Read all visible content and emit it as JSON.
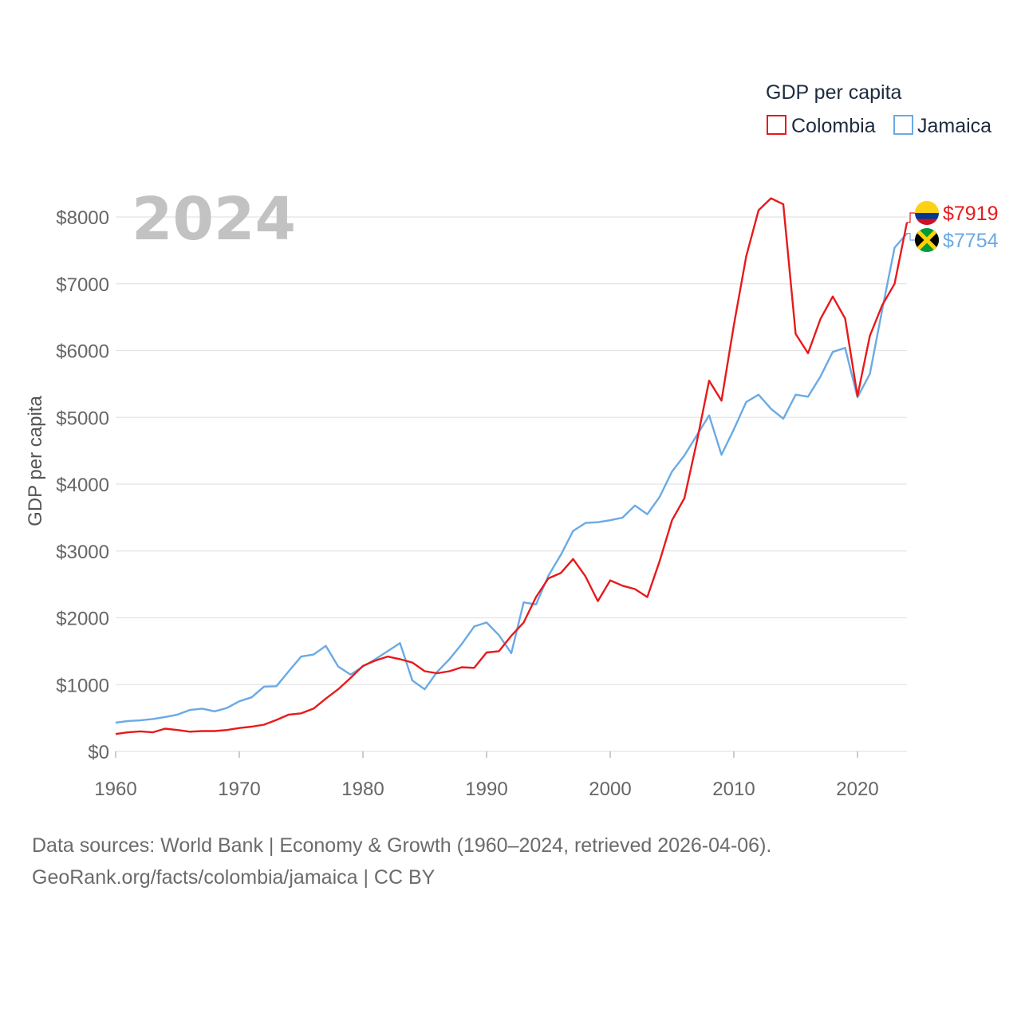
{
  "chart_data": {
    "type": "line",
    "ylabel": "GDP per capita",
    "xlabel": "",
    "highlight_year": "2024",
    "xlim": [
      1960,
      2024
    ],
    "ylim": [
      0,
      8000
    ],
    "x_ticks": [
      1960,
      1970,
      1980,
      1990,
      2000,
      2010,
      2020
    ],
    "y_ticks": [
      0,
      1000,
      2000,
      3000,
      4000,
      5000,
      6000,
      7000,
      8000
    ],
    "y_tick_labels": [
      "$0",
      "$1000",
      "$2000",
      "$3000",
      "$4000",
      "$5000",
      "$6000",
      "$7000",
      "$8000"
    ],
    "x_tick_labels": [
      "1960",
      "1970",
      "1980",
      "1990",
      "2000",
      "2010",
      "2020"
    ],
    "legend": {
      "title": "GDP per capita",
      "position": "top-right",
      "items": [
        "Colombia",
        "Jamaica"
      ]
    },
    "years": [
      1960,
      1961,
      1962,
      1963,
      1964,
      1965,
      1966,
      1967,
      1968,
      1969,
      1970,
      1971,
      1972,
      1973,
      1974,
      1975,
      1976,
      1977,
      1978,
      1979,
      1980,
      1981,
      1982,
      1983,
      1984,
      1985,
      1986,
      1987,
      1988,
      1989,
      1990,
      1991,
      1992,
      1993,
      1994,
      1995,
      1996,
      1997,
      1998,
      1999,
      2000,
      2001,
      2002,
      2003,
      2004,
      2005,
      2006,
      2007,
      2008,
      2009,
      2010,
      2011,
      2012,
      2013,
      2014,
      2015,
      2016,
      2017,
      2018,
      2019,
      2020,
      2021,
      2022,
      2023,
      2024
    ],
    "series": [
      {
        "name": "Colombia",
        "color": "#e8191b",
        "end_label": "$7919",
        "flag": "colombia-flag-icon",
        "values": [
          260,
          285,
          300,
          285,
          340,
          320,
          295,
          305,
          305,
          320,
          350,
          370,
          400,
          470,
          550,
          570,
          640,
          790,
          930,
          1100,
          1280,
          1360,
          1420,
          1380,
          1330,
          1200,
          1170,
          1200,
          1260,
          1250,
          1480,
          1500,
          1730,
          1930,
          2310,
          2590,
          2670,
          2880,
          2620,
          2250,
          2560,
          2480,
          2430,
          2310,
          2850,
          3460,
          3790,
          4630,
          5550,
          5250,
          6380,
          7410,
          8100,
          8280,
          8190,
          6250,
          5960,
          6470,
          6810,
          6480,
          5320,
          6220,
          6680,
          7000,
          7919
        ]
      },
      {
        "name": "Jamaica",
        "color": "#6aaae4",
        "end_label": "$7754",
        "flag": "jamaica-flag-icon",
        "values": [
          430,
          455,
          465,
          485,
          515,
          550,
          620,
          640,
          600,
          650,
          750,
          810,
          970,
          975,
          1200,
          1420,
          1450,
          1580,
          1270,
          1150,
          1270,
          1380,
          1500,
          1620,
          1060,
          930,
          1190,
          1380,
          1610,
          1870,
          1930,
          1740,
          1470,
          2230,
          2200,
          2630,
          2940,
          3300,
          3420,
          3430,
          3460,
          3500,
          3680,
          3550,
          3810,
          4190,
          4430,
          4730,
          5030,
          4440,
          4820,
          5230,
          5340,
          5130,
          4980,
          5340,
          5310,
          5610,
          5980,
          6040,
          5300,
          5650,
          6610,
          7540,
          7754
        ]
      }
    ]
  },
  "footer": {
    "source_line": "Data sources: World Bank | Economy & Growth (1960–2024, retrieved 2026-04-06).",
    "credit_line": "GeoRank.org/facts/colombia/jamaica | CC BY"
  }
}
